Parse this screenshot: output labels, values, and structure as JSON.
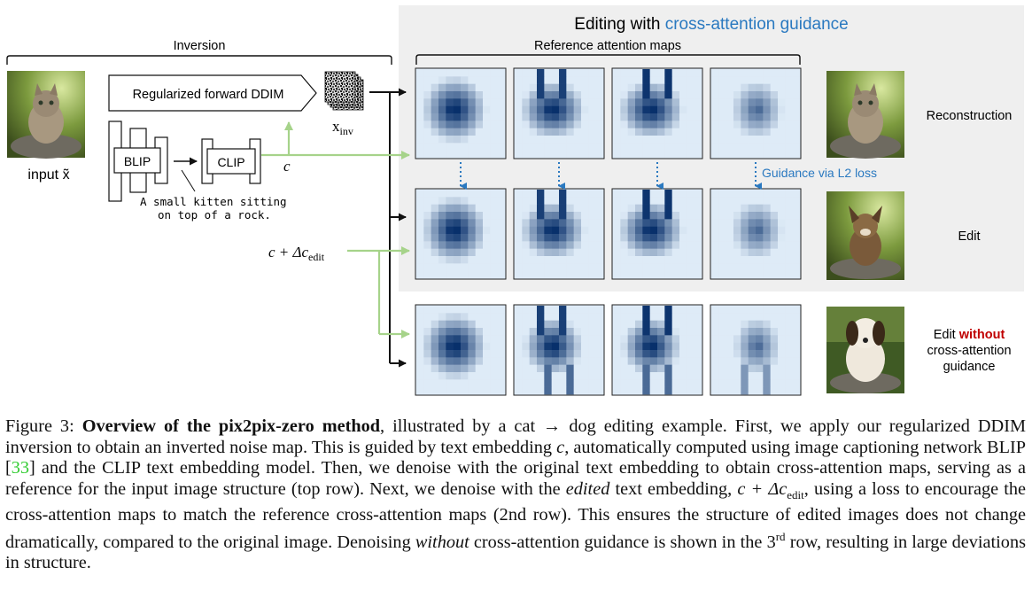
{
  "figure": {
    "panel_title_prefix": "Editing with ",
    "panel_title_highlight": "cross-attention guidance",
    "panel_title_highlight_color": "#2a79c0",
    "reference_label": "Reference attention maps",
    "inversion_label": "Inversion",
    "ddim_label": "Regularized forward DDIM",
    "blip_label": "BLIP",
    "clip_label": "CLIP",
    "caption_line1": "A small kitten sitting",
    "caption_line2": "on top of a rock.",
    "input_label": "input x̃",
    "x_inv_base": "x",
    "x_inv_sub": "inv",
    "c_label": "c",
    "c_edit_prefix": "c + Δc",
    "c_edit_sub": "edit",
    "guidance_label": "Guidance via L2 loss",
    "row_labels": {
      "reconstruction": "Reconstruction",
      "edit": "Edit",
      "edit_without_prefix": "Edit ",
      "edit_without_word": "without",
      "edit_without_line2": "cross-attention",
      "edit_without_line3": "guidance"
    },
    "colors": {
      "panel_bg": "#efefef",
      "arrow_green": "#a6d38a",
      "guidance_blue": "#2a79c0",
      "attention_dark": "#08306b",
      "attention_light": "#deebf7",
      "without_red": "#c00000"
    }
  },
  "caption": {
    "fig_label": "Figure 3: ",
    "bold_title": "Overview of the pix2pix-zero method",
    "t1": ", illustrated by a cat → dog editing example. First, we apply our regularized DDIM inversion to obtain an inverted noise map. This is guided by text embedding ",
    "c": "c",
    "t2": ", automatically computed using image captioning network BLIP [",
    "ref": "33",
    "t3": "] and the CLIP text embedding model. Then, we denoise with the original text embedding to obtain cross-attention maps, serving as a reference for the input image structure (top row). Next, we denoise with the ",
    "edited": "edited",
    "t4": " text embedding, ",
    "cdelta": "c + Δc",
    "cdelta_sub": "edit",
    "t5": ", using a loss to encourage the cross-attention maps to match the reference cross-attention maps (2nd row). This ensures the structure of edited images does not change dramatically, compared to the original image. Denoising ",
    "without": "without",
    "t6": " cross-attention guidance is shown in the 3",
    "rd": "rd",
    "t7": " row, resulting in large deviations in structure."
  }
}
